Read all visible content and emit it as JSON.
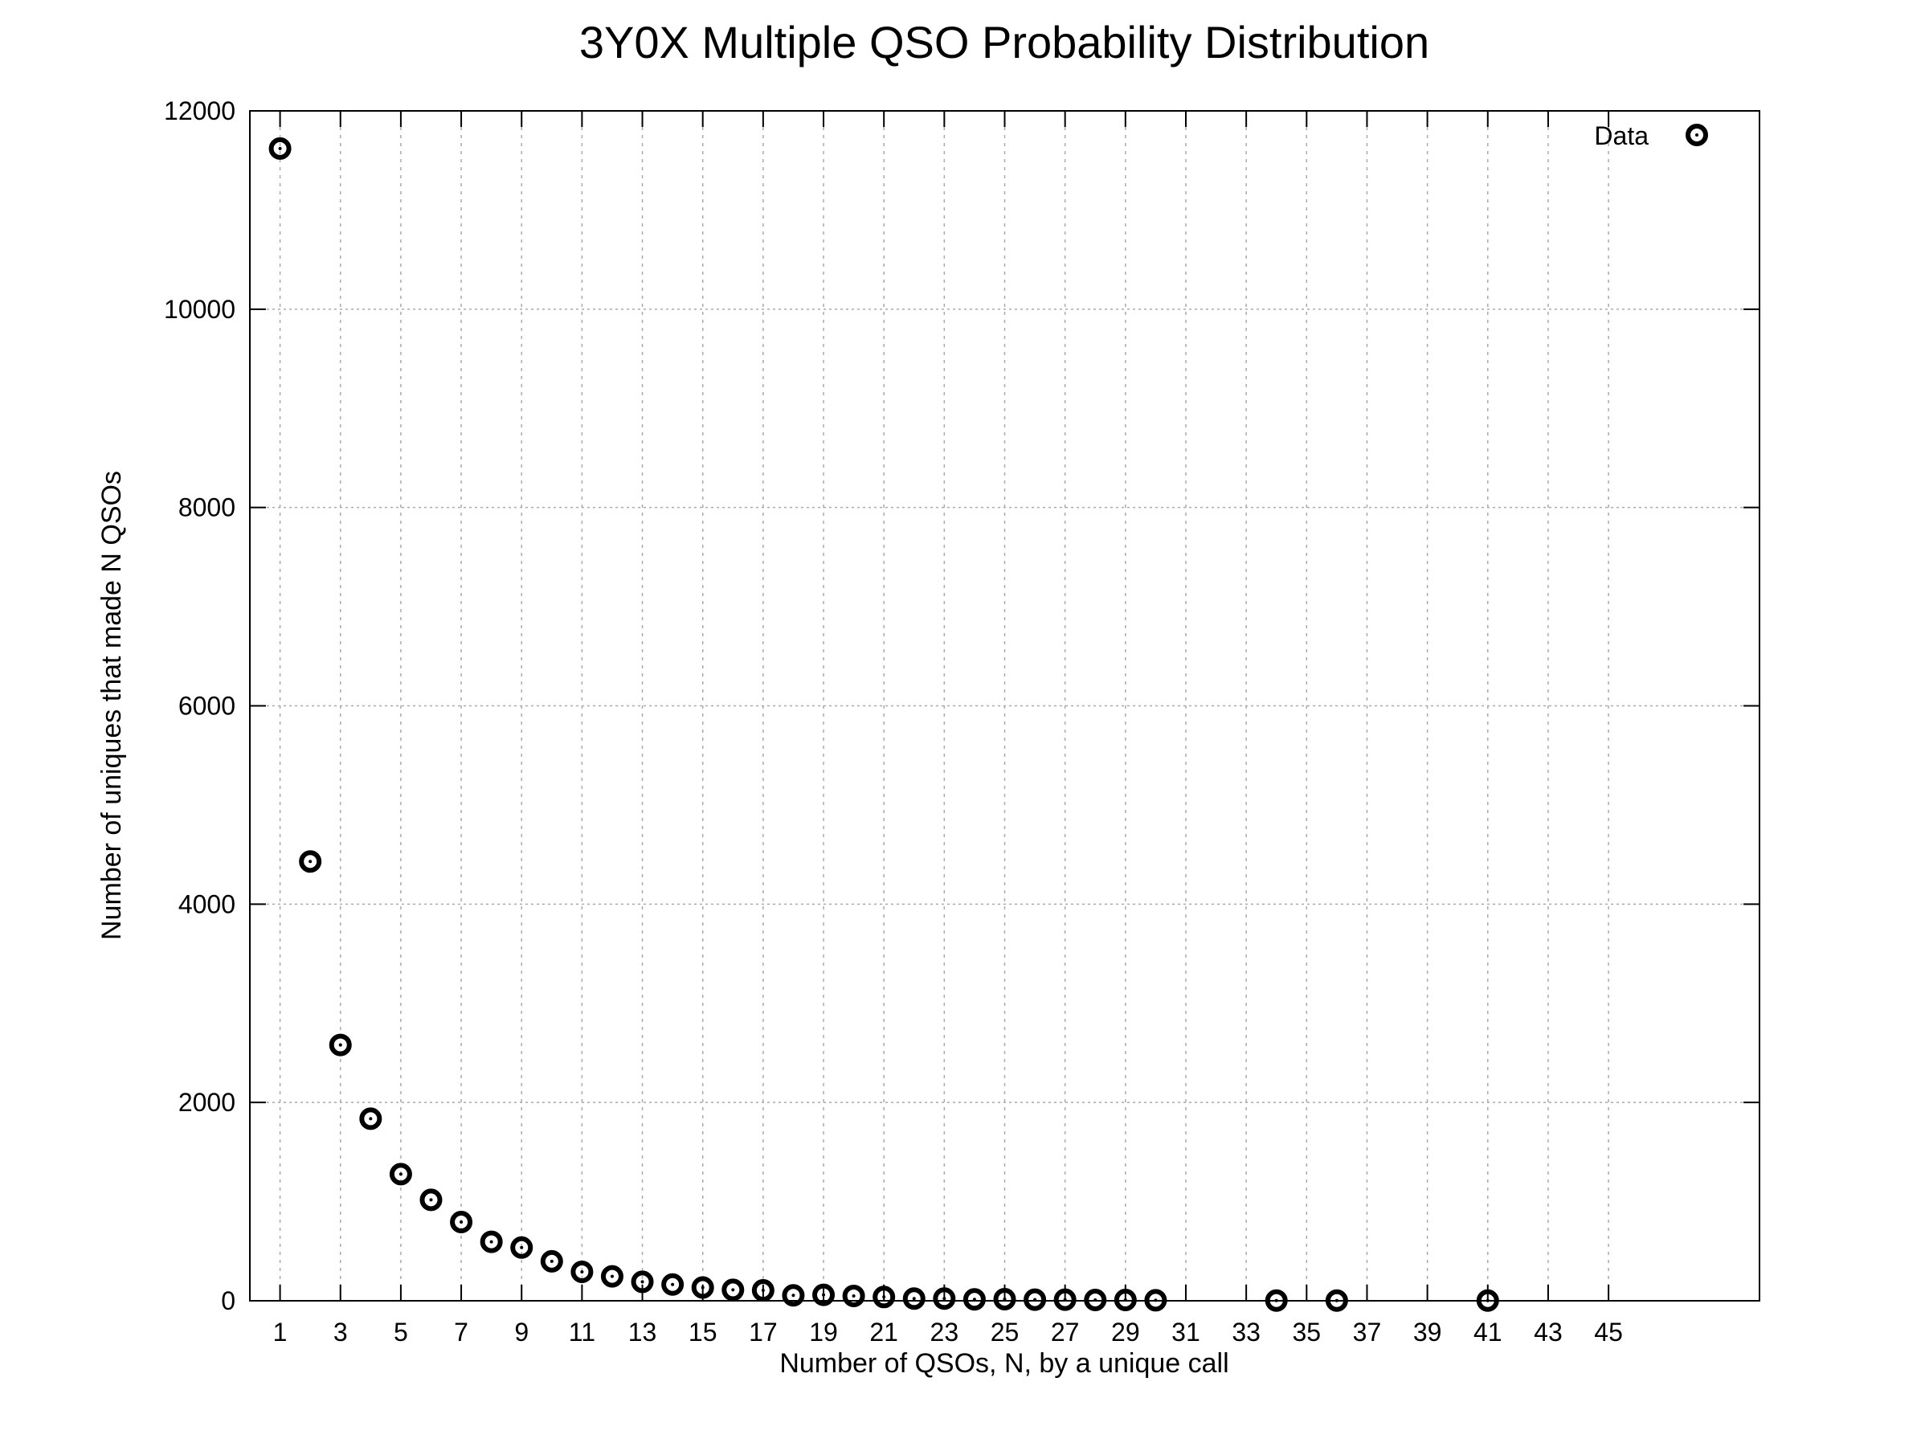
{
  "chart_data": {
    "type": "scatter",
    "title": "3Y0X Multiple QSO Probability Distribution",
    "xlabel": "Number of QSOs, N, by a unique call",
    "ylabel": "Number of uniques that made N QSOs",
    "xlim": [
      0,
      50
    ],
    "ylim": [
      0,
      12000
    ],
    "xticks": [
      1,
      3,
      5,
      7,
      9,
      11,
      13,
      15,
      17,
      19,
      21,
      23,
      25,
      27,
      29,
      31,
      33,
      35,
      37,
      39,
      41,
      43,
      45
    ],
    "yticks": [
      0,
      2000,
      4000,
      6000,
      8000,
      10000,
      12000
    ],
    "grid": true,
    "legend": {
      "placement": "top-right",
      "entries": [
        "Data"
      ]
    },
    "series": [
      {
        "name": "Data",
        "x": [
          1,
          2,
          3,
          4,
          5,
          6,
          7,
          8,
          9,
          10,
          11,
          12,
          13,
          14,
          15,
          16,
          17,
          18,
          19,
          20,
          21,
          22,
          23,
          24,
          25,
          26,
          27,
          28,
          29,
          30,
          34,
          36,
          41
        ],
        "y": [
          11620,
          4430,
          2580,
          1836,
          1277,
          1018,
          794,
          595,
          537,
          398,
          292,
          246,
          191,
          164,
          134,
          110,
          105,
          55,
          60,
          49,
          38,
          22,
          22,
          14,
          16,
          11,
          11,
          8,
          8,
          5,
          2,
          2,
          2
        ]
      }
    ]
  }
}
